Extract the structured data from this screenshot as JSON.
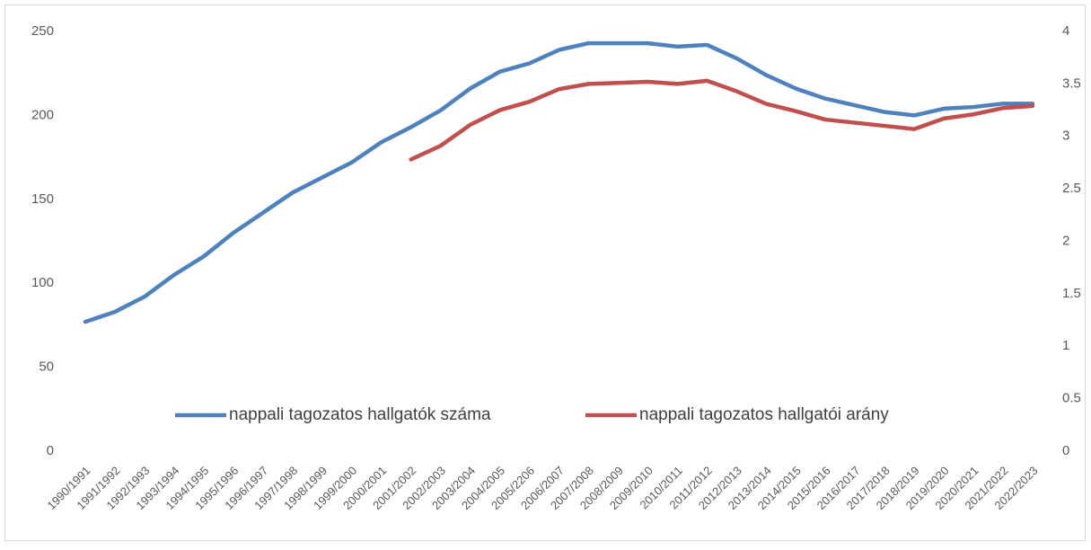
{
  "chart_data": {
    "type": "line",
    "categories": [
      "1990/1991",
      "1991/1992",
      "1992/1993",
      "1993/1994",
      "1994/1995",
      "1995/1996",
      "1996/1997",
      "1997/1998",
      "1998/1999",
      "1999/2000",
      "2000/2001",
      "2001/2002",
      "2002/2003",
      "2003/2004",
      "2004/2005",
      "2005/2206",
      "2006/2007",
      "2007/2008",
      "2008/2009",
      "2009/2010",
      "2010/2011",
      "2011/2012",
      "2012/2013",
      "2013/2014",
      "2014/2015",
      "2015/2016",
      "2016/2017",
      "2017/2018",
      "2018/2019",
      "2019/2020",
      "2020/2021",
      "2021/2022",
      "2022/2023"
    ],
    "series": [
      {
        "name": "nappali tagozatos hallgatók száma",
        "color": "#4f81bd",
        "axis": "y",
        "values": [
          77,
          83,
          92,
          105,
          116,
          130,
          142,
          154,
          163,
          172,
          184,
          193,
          203,
          216,
          226,
          231,
          239,
          243,
          243,
          243,
          241,
          242,
          234,
          224,
          216,
          210,
          206,
          202,
          200,
          204,
          205,
          207,
          207
        ]
      },
      {
        "name": "nappali tagozatos hallgatói arány",
        "color": "#c0504d",
        "axis": "y2",
        "values": [
          null,
          null,
          null,
          null,
          null,
          null,
          null,
          null,
          null,
          null,
          null,
          2.78,
          2.91,
          3.11,
          3.25,
          3.33,
          3.45,
          3.5,
          3.51,
          3.52,
          3.5,
          3.53,
          3.43,
          3.31,
          3.24,
          3.16,
          3.13,
          3.1,
          3.07,
          3.17,
          3.21,
          3.27,
          3.29
        ]
      }
    ],
    "ylim": [
      0,
      250
    ],
    "yticks": [
      0,
      50,
      100,
      150,
      200,
      250
    ],
    "y2lim": [
      0,
      4
    ],
    "y2ticks": [
      0,
      0.5,
      1,
      1.5,
      2,
      2.5,
      3,
      3.5,
      4
    ],
    "grid": false,
    "legend_position": "bottom"
  }
}
